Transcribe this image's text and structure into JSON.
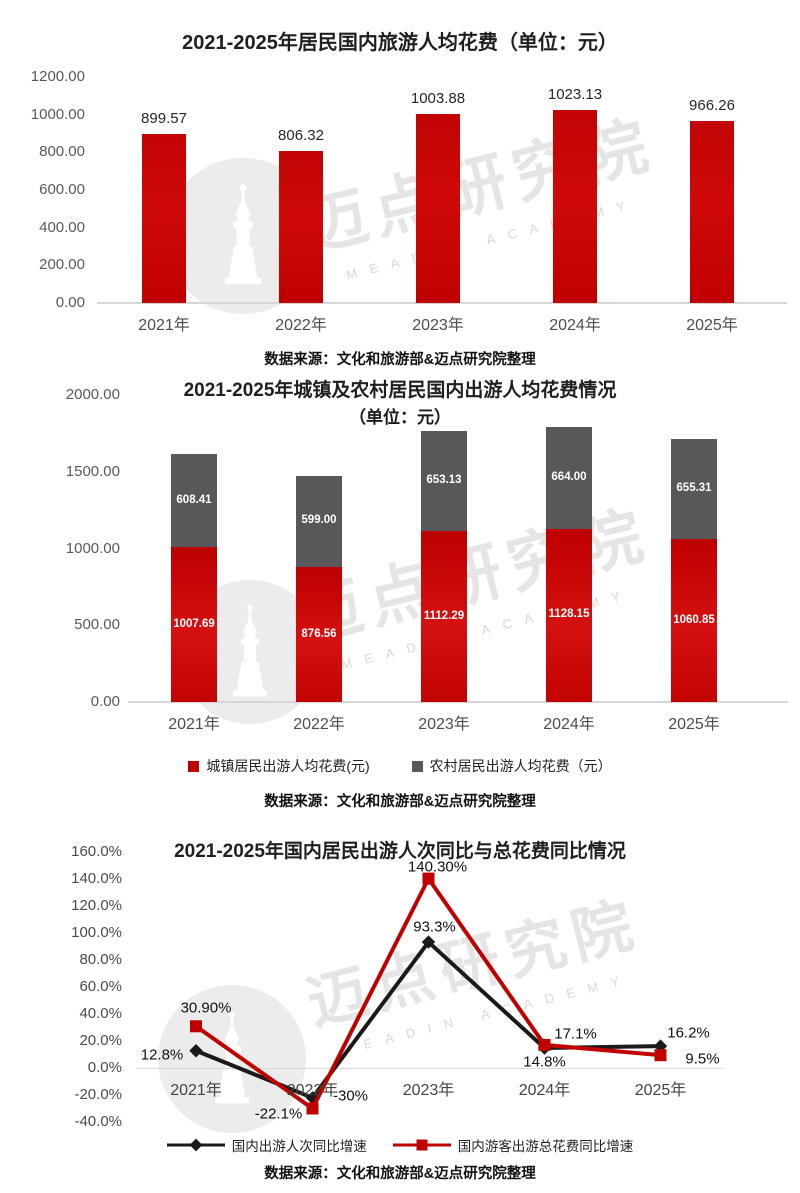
{
  "watermark": {
    "brand": "迈点研究院",
    "caption": "MEADIN ACADEMY",
    "logo": "tower-icon"
  },
  "colors": {
    "red": "#c00000",
    "gray": "#595959",
    "black": "#1a1a1a",
    "axis": "#d6d6d6"
  },
  "chart_data": [
    {
      "type": "bar",
      "title": "2021-2025年居民国内旅游人均花费（单位：元）",
      "categories": [
        "2021年",
        "2022年",
        "2023年",
        "2024年",
        "2025年"
      ],
      "values": [
        899.57,
        806.32,
        1003.88,
        1023.13,
        966.26
      ],
      "value_labels": [
        "899.57",
        "806.32",
        "1003.88",
        "1023.13",
        "966.26"
      ],
      "ylim": [
        0,
        1200
      ],
      "yticks": [
        "1200.00",
        "1000.00",
        "800.00",
        "600.00",
        "400.00",
        "200.00",
        "0.00"
      ],
      "bar_color": "#c00000",
      "grid": false,
      "legend_position": "none",
      "source": "数据来源：文化和旅游部&迈点研究院整理"
    },
    {
      "type": "stacked-bar",
      "title": "2021-2025年城镇及农村居民国内出游人均花费情况",
      "subtitle": "（单位：元）",
      "categories": [
        "2021年",
        "2022年",
        "2023年",
        "2024年",
        "2025年"
      ],
      "series": [
        {
          "name": "城镇居民出游人均花费(元)",
          "color": "#c00000",
          "values": [
            1007.69,
            876.56,
            1112.29,
            1128.15,
            1060.85
          ],
          "labels": [
            "1007.69",
            "876.56",
            "1112.29",
            "1128.15",
            "1060.85"
          ]
        },
        {
          "name": "农村居民出游人均花费（元）",
          "color": "#595959",
          "values": [
            608.41,
            599.0,
            653.13,
            664.0,
            655.31
          ],
          "labels": [
            "608.41",
            "599.00",
            "653.13",
            "664.00",
            "655.31"
          ]
        }
      ],
      "ylim": [
        0,
        2000
      ],
      "yticks": [
        "2000.00",
        "1500.00",
        "1000.00",
        "500.00",
        "0.00"
      ],
      "grid": false,
      "legend_position": "bottom",
      "source": "数据来源：文化和旅游部&迈点研究院整理"
    },
    {
      "type": "line",
      "title": "2021-2025年国内居民出游人次同比与总花费同比情况",
      "categories": [
        "2021年",
        "2022年",
        "2023年",
        "2024年",
        "2025年"
      ],
      "series": [
        {
          "name": "国内出游人次同比增速",
          "color": "#1a1a1a",
          "marker": "diamond",
          "values": [
            12.8,
            -22.1,
            93.3,
            14.8,
            16.2
          ],
          "labels": [
            "12.8%",
            "-22.1%",
            "93.3%",
            "14.8%",
            "16.2%"
          ],
          "label_offsets": [
            [
              -34,
              4
            ],
            [
              -34,
              16
            ],
            [
              6,
              -15
            ],
            [
              0,
              14
            ],
            [
              28,
              -13
            ]
          ]
        },
        {
          "name": "国内游客出游总花费同比增速",
          "color": "#c00000",
          "marker": "square",
          "values": [
            30.9,
            -30.0,
            140.3,
            17.1,
            9.5
          ],
          "labels": [
            "30.90%",
            "-30%",
            "140.30%",
            "17.1%",
            "9.5%"
          ],
          "label_offsets": [
            [
              10,
              -18
            ],
            [
              38,
              -13
            ],
            [
              9,
              -12
            ],
            [
              31,
              -11
            ],
            [
              42,
              4
            ]
          ]
        }
      ],
      "ylim": [
        -40,
        160
      ],
      "yticks": [
        "160.0%",
        "140.0%",
        "120.0%",
        "100.0%",
        "80.0%",
        "60.0%",
        "40.0%",
        "20.0%",
        "0.0%",
        "-20.0%",
        "-40.0%"
      ],
      "grid": "zero-line-only",
      "legend_position": "bottom",
      "source": "数据来源：文化和旅游部&迈点研究院整理"
    }
  ]
}
